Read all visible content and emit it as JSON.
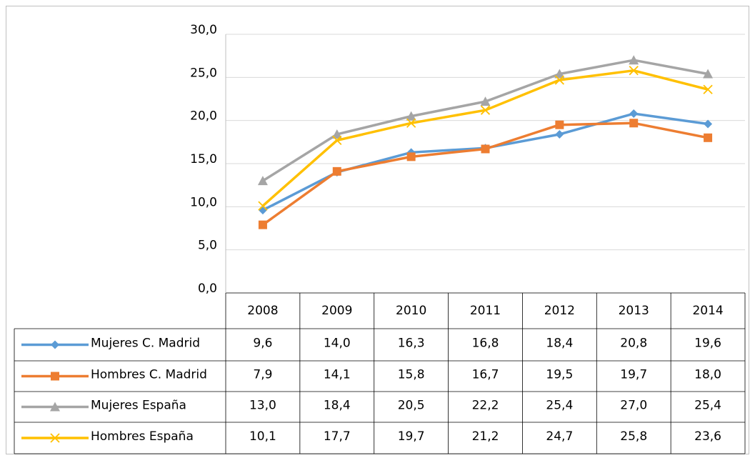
{
  "chart_data": {
    "type": "line",
    "categories": [
      "2008",
      "2009",
      "2010",
      "2011",
      "2012",
      "2013",
      "2014"
    ],
    "series": [
      {
        "name": "Mujeres C. Madrid",
        "color": "#5b9bd5",
        "marker": "diamond",
        "values": [
          9.6,
          14.0,
          16.3,
          16.8,
          18.4,
          20.8,
          19.6
        ],
        "value_labels": [
          "9,6",
          "14,0",
          "16,3",
          "16,8",
          "18,4",
          "20,8",
          "19,6"
        ]
      },
      {
        "name": "Hombres C. Madrid",
        "color": "#ed7d31",
        "marker": "square",
        "values": [
          7.9,
          14.1,
          15.8,
          16.7,
          19.5,
          19.7,
          18.0
        ],
        "value_labels": [
          "7,9",
          "14,1",
          "15,8",
          "16,7",
          "19,5",
          "19,7",
          "18,0"
        ]
      },
      {
        "name": "Mujeres España",
        "color": "#a5a5a5",
        "marker": "triangle",
        "values": [
          13.0,
          18.4,
          20.5,
          22.2,
          25.4,
          27.0,
          25.4
        ],
        "value_labels": [
          "13,0",
          "18,4",
          "20,5",
          "22,2",
          "25,4",
          "27,0",
          "25,4"
        ]
      },
      {
        "name": "Hombres España",
        "color": "#ffc000",
        "marker": "x",
        "values": [
          10.1,
          17.7,
          19.7,
          21.2,
          24.7,
          25.8,
          23.6
        ],
        "value_labels": [
          "10,1",
          "17,7",
          "19,7",
          "21,2",
          "24,7",
          "25,8",
          "23,6"
        ]
      }
    ],
    "ylim": [
      0,
      30
    ],
    "yticks": [
      {
        "value": 0,
        "label": "0,0"
      },
      {
        "value": 5,
        "label": "5,0"
      },
      {
        "value": 10,
        "label": "10,0"
      },
      {
        "value": 15,
        "label": "15,0"
      },
      {
        "value": 20,
        "label": "20,0"
      },
      {
        "value": 25,
        "label": "25,0"
      },
      {
        "value": 30,
        "label": "30,0"
      }
    ],
    "grid": true
  }
}
